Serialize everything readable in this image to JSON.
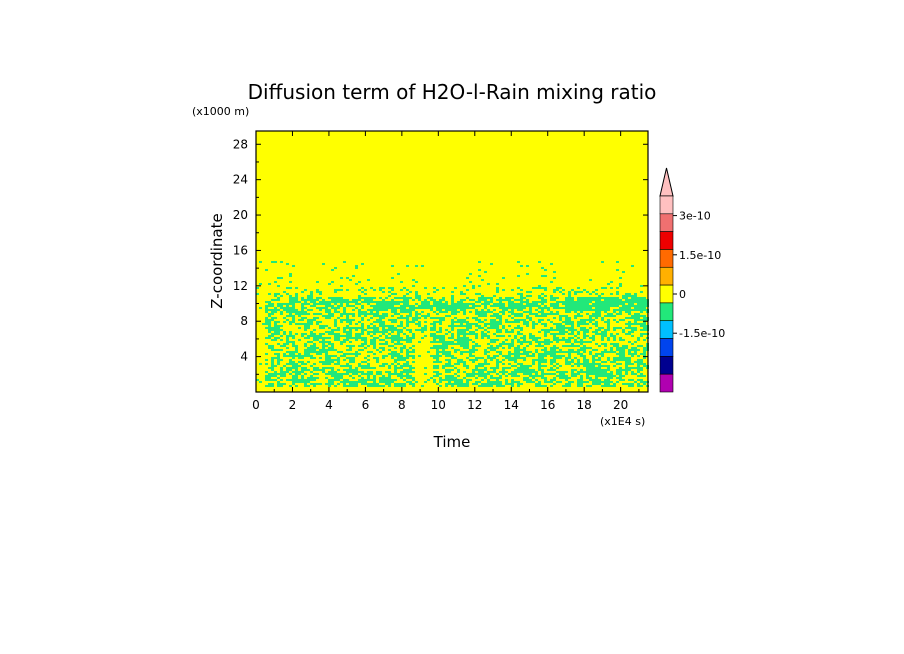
{
  "chart_data": {
    "type": "heatmap",
    "title": "Diffusion term of H2O-l-Rain mixing ratio",
    "xlabel": "Time",
    "ylabel": "Z-coordinate",
    "x_unit": "(x1E4 s)",
    "y_unit": "(x1000 m)",
    "xlim": [
      0,
      21.5
    ],
    "ylim": [
      0,
      29.5
    ],
    "x_ticks": [
      "0",
      "2",
      "4",
      "6",
      "8",
      "10",
      "12",
      "14",
      "16",
      "18",
      "20"
    ],
    "y_ticks": [
      "4",
      "8",
      "12",
      "16",
      "20",
      "24",
      "28"
    ],
    "x_tick_values": [
      0,
      2,
      4,
      6,
      8,
      10,
      12,
      14,
      16,
      18,
      20
    ],
    "y_tick_values": [
      4,
      8,
      12,
      16,
      20,
      24,
      28
    ],
    "background_color": "#ffff00",
    "pattern_color": "#22e87a",
    "field_description": "near-zero field over most of the domain; small negative values (0 to -0.75e-10) concentrated below ~11 km with a band near 9.5-10.5 km and scattered patches up to ~15 km",
    "colorbar": {
      "labels": [
        "3e-10",
        "1.5e-10",
        "0",
        "-1.5e-10"
      ],
      "label_values": [
        3e-10,
        1.5e-10,
        0,
        -1.5e-10
      ],
      "colors_top_to_bottom": [
        "#ffc0c0",
        "#f07070",
        "#ee0000",
        "#ff6a00",
        "#ffb000",
        "#ffff00",
        "#22e87a",
        "#00c0ff",
        "#0044ee",
        "#000090",
        "#b000b0"
      ],
      "has_top_extension": true
    }
  }
}
